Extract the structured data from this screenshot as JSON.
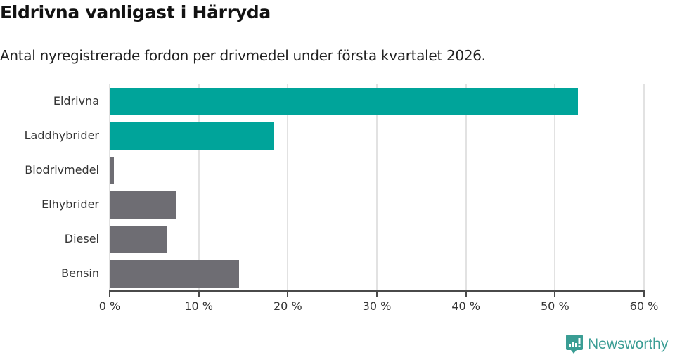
{
  "header": {
    "title": "Eldrivna vanligast i Härryda",
    "subtitle": "Antal nyregistrerade fordon per drivmedel under första kvartalet 2026."
  },
  "colors": {
    "highlight": "#00a49a",
    "default": "#6e6d73",
    "grid": "#e2e2e2",
    "axis": "#4a4a4a",
    "brand": "#3a9d94"
  },
  "chart_data": {
    "type": "bar",
    "orientation": "horizontal",
    "title": "Eldrivna vanligast i Härryda",
    "subtitle": "Antal nyregistrerade fordon per drivmedel under första kvartalet 2026.",
    "categories": [
      "Eldrivna",
      "Laddhybrider",
      "Biodrivmedel",
      "Elhybrider",
      "Diesel",
      "Bensin"
    ],
    "values": [
      52.6,
      18.5,
      0.5,
      7.5,
      6.5,
      14.5
    ],
    "highlighted": [
      "Eldrivna",
      "Laddhybrider"
    ],
    "xlabel": "",
    "ylabel": "",
    "xlim": [
      0,
      60
    ],
    "xticks": [
      "0 %",
      "10 %",
      "20 %",
      "30 %",
      "40 %",
      "50 %",
      "60 %"
    ],
    "grid": true,
    "legend": null
  },
  "footer": {
    "brand": "Newsworthy",
    "logo_icon": "bar-chart-speech-bubble-icon"
  }
}
